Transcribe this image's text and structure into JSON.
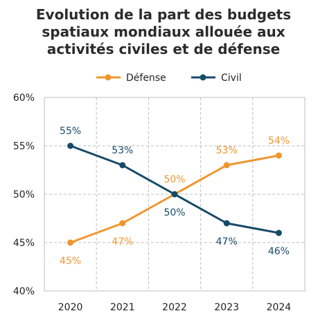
{
  "chart_data": {
    "type": "line",
    "title_lines": [
      "Evolution de la part des budgets",
      "spatiaux mondiaux allouée aux",
      "activités civiles et de défense"
    ],
    "x": [
      "2020",
      "2021",
      "2022",
      "2023",
      "2024"
    ],
    "series": [
      {
        "name": "Défense",
        "color": "#f0952e",
        "values": [
          45,
          47,
          50,
          53,
          54
        ],
        "labels": [
          "45%",
          "47%",
          "50%",
          "53%",
          "54%"
        ]
      },
      {
        "name": "Civil",
        "color": "#164a68",
        "values": [
          55,
          53,
          50,
          47,
          46
        ],
        "labels": [
          "55%",
          "53%",
          "50%",
          "47%",
          "46%"
        ]
      }
    ],
    "ylim": [
      40,
      60
    ],
    "yticks": [
      40,
      45,
      50,
      55,
      60
    ],
    "ytick_labels": [
      "40%",
      "45%",
      "50%",
      "55%",
      "60%"
    ],
    "grid": true,
    "legend_position": "top-center"
  }
}
